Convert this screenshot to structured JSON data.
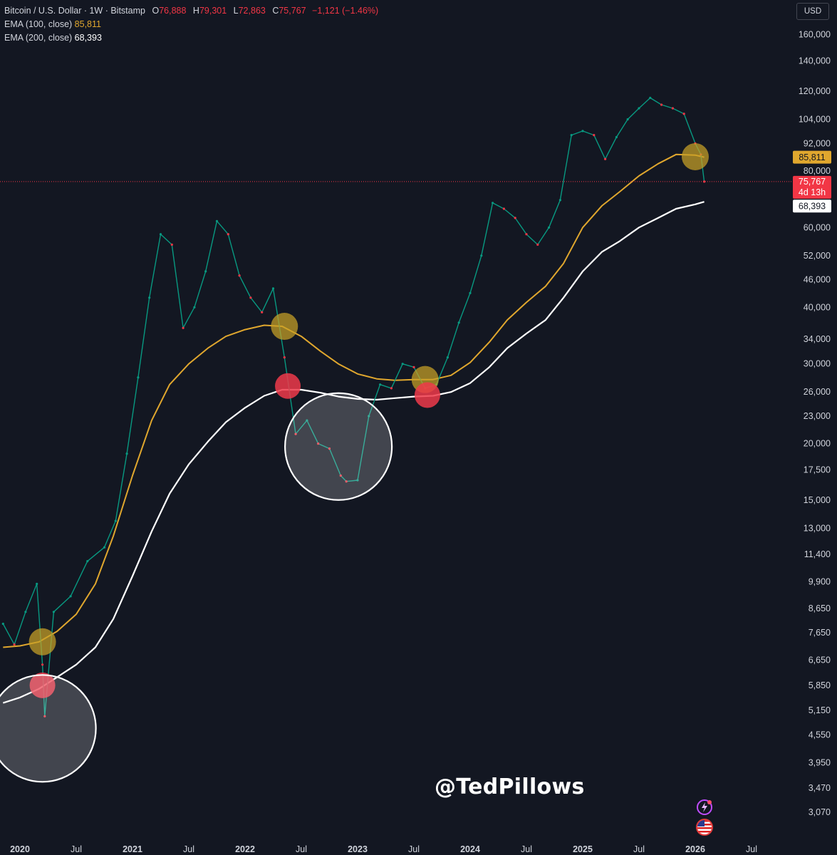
{
  "header": {
    "symbol": "Bitcoin / U.S. Dollar · 1W · Bitstamp",
    "o_label": "O",
    "o": "76,888",
    "h_label": "H",
    "h": "79,301",
    "l_label": "L",
    "l": "72,863",
    "c_label": "C",
    "c": "75,767",
    "change": "−1,121 (−1.46%)",
    "ema100_label": "EMA (100, close)",
    "ema100_value": "85,811",
    "ema200_label": "EMA (200, close)",
    "ema200_value": "68,393",
    "currency": "USD"
  },
  "watermark": "@TedPillows",
  "colors": {
    "background": "#131722",
    "up": "#089981",
    "down": "#f23645",
    "ema100": "#e0a72e",
    "ema200": "#ffffff",
    "highlight_red": "#ef3a4a",
    "highlight_gold": "#c9a227"
  },
  "icons": [
    "flash-icon",
    "us-flag-icon"
  ],
  "chart_data": {
    "type": "line",
    "scale": "log",
    "y_ticks": [
      "160,000",
      "140,000",
      "120,000",
      "104,000",
      "92,000",
      "80,000",
      "60,000",
      "52,000",
      "46,000",
      "40,000",
      "34,000",
      "30,000",
      "26,000",
      "23,000",
      "20,000",
      "17,500",
      "15,000",
      "13,000",
      "11,400",
      "9,900",
      "8,650",
      "7,650",
      "6,650",
      "5,850",
      "5,150",
      "4,550",
      "3,950",
      "3,470",
      "3,070"
    ],
    "x_ticks": [
      "2020",
      "Jul",
      "2021",
      "Jul",
      "2022",
      "Jul",
      "2023",
      "Jul",
      "2024",
      "Jul",
      "2025",
      "Jul",
      "2026",
      "Jul"
    ],
    "price_labels": {
      "ema100": "85,811",
      "last": "75,767",
      "countdown": "4d 13h",
      "ema200": "68,393"
    },
    "series": [
      {
        "name": "EMA (100, close)",
        "x": [
          2019.85,
          2020.0,
          2020.17,
          2020.33,
          2020.5,
          2020.67,
          2020.83,
          2021.0,
          2021.17,
          2021.33,
          2021.5,
          2021.67,
          2021.83,
          2022.0,
          2022.17,
          2022.33,
          2022.5,
          2022.67,
          2022.83,
          2023.0,
          2023.17,
          2023.33,
          2023.5,
          2023.67,
          2023.83,
          2024.0,
          2024.17,
          2024.33,
          2024.5,
          2024.67,
          2024.83,
          2025.0,
          2025.17,
          2025.33,
          2025.5,
          2025.67,
          2025.83,
          2026.0,
          2026.08
        ],
        "values": [
          7100,
          7150,
          7300,
          7700,
          8400,
          9800,
          12500,
          17000,
          22500,
          27000,
          30000,
          32500,
          34500,
          35700,
          36500,
          36300,
          34500,
          32000,
          30000,
          28500,
          27800,
          27600,
          27700,
          27700,
          28300,
          30200,
          33500,
          37500,
          41000,
          44500,
          50000,
          60000,
          67000,
          72000,
          78000,
          83000,
          87000,
          86700,
          85811
        ]
      },
      {
        "name": "EMA (200, close)",
        "x": [
          2019.85,
          2020.0,
          2020.17,
          2020.33,
          2020.5,
          2020.67,
          2020.83,
          2021.0,
          2021.17,
          2021.33,
          2021.5,
          2021.67,
          2021.83,
          2022.0,
          2022.17,
          2022.33,
          2022.5,
          2022.67,
          2022.83,
          2023.0,
          2023.17,
          2023.33,
          2023.5,
          2023.67,
          2023.83,
          2024.0,
          2024.17,
          2024.33,
          2024.5,
          2024.67,
          2024.83,
          2025.0,
          2025.17,
          2025.33,
          2025.5,
          2025.67,
          2025.83,
          2026.0,
          2026.08
        ],
        "values": [
          5350,
          5500,
          5750,
          6100,
          6500,
          7100,
          8200,
          10200,
          12800,
          15500,
          18000,
          20200,
          22300,
          24000,
          25500,
          26300,
          26300,
          25900,
          25400,
          25100,
          25000,
          25200,
          25400,
          25500,
          26000,
          27200,
          29500,
          32500,
          35000,
          37500,
          42000,
          48000,
          53000,
          56000,
          60000,
          63000,
          66000,
          67500,
          68393
        ]
      },
      {
        "name": "",
        "x": [
          2019.85,
          2019.95,
          2020.05,
          2020.15,
          2020.2,
          2020.22,
          2020.3,
          2020.45,
          2020.6,
          2020.75,
          2020.85,
          2020.95,
          2021.05,
          2021.15,
          2021.25,
          2021.35,
          2021.45,
          2021.55,
          2021.65,
          2021.75,
          2021.85,
          2021.95,
          2022.05,
          2022.15,
          2022.25,
          2022.35,
          2022.45,
          2022.55,
          2022.65,
          2022.75,
          2022.85,
          2022.9,
          2023.0,
          2023.1,
          2023.2,
          2023.3,
          2023.4,
          2023.5,
          2023.6,
          2023.7,
          2023.8,
          2023.9,
          2024.0,
          2024.1,
          2024.2,
          2024.3,
          2024.4,
          2024.5,
          2024.6,
          2024.7,
          2024.8,
          2024.9,
          2025.0,
          2025.1,
          2025.2,
          2025.3,
          2025.4,
          2025.5,
          2025.6,
          2025.7,
          2025.8,
          2025.9,
          2026.0,
          2026.05,
          2026.08
        ],
        "values": [
          8000,
          7200,
          8500,
          9800,
          6500,
          5000,
          8500,
          9200,
          11000,
          11800,
          13500,
          19000,
          28000,
          42000,
          58000,
          55000,
          36000,
          40000,
          48000,
          62000,
          58000,
          47000,
          42000,
          39000,
          44000,
          31000,
          21000,
          22500,
          20000,
          19500,
          17000,
          16500,
          16600,
          23000,
          27000,
          26500,
          30000,
          29500,
          26500,
          27000,
          31000,
          37000,
          43000,
          52000,
          68000,
          66000,
          63000,
          58000,
          55000,
          60000,
          69000,
          96000,
          98000,
          96000,
          85000,
          95000,
          104000,
          110000,
          116000,
          112000,
          110000,
          107000,
          92000,
          87000,
          75767
        ]
      }
    ],
    "markers": [
      {
        "type": "gold-circle",
        "x": 2020.2,
        "y": 7300
      },
      {
        "type": "red-circle",
        "x": 2020.2,
        "y": 5850
      },
      {
        "type": "white-ring",
        "x": 2020.2,
        "y": 4700
      },
      {
        "type": "gold-circle",
        "x": 2022.35,
        "y": 36300
      },
      {
        "type": "red-circle",
        "x": 2022.38,
        "y": 26800
      },
      {
        "type": "white-ring",
        "x": 2022.83,
        "y": 19700
      },
      {
        "type": "gold-circle",
        "x": 2023.6,
        "y": 27700
      },
      {
        "type": "red-circle",
        "x": 2023.62,
        "y": 25600
      },
      {
        "type": "gold-circle",
        "x": 2026.0,
        "y": 86000
      }
    ]
  }
}
